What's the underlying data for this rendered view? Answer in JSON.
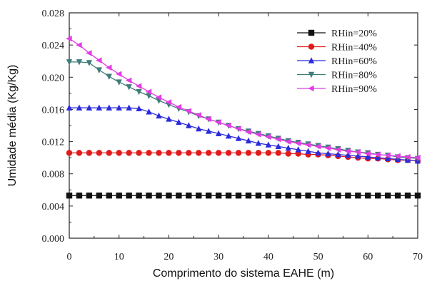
{
  "chart_data": {
    "type": "line",
    "xlabel": "Comprimento do sistema EAHE (m)",
    "ylabel": "Umidade média (Kg/Kg)",
    "xlim": [
      0,
      70
    ],
    "ylim": [
      0,
      0.028
    ],
    "x_ticks": [
      "0",
      "10",
      "20",
      "30",
      "40",
      "50",
      "60",
      "70"
    ],
    "y_ticks": [
      "0.000",
      "0.004",
      "0.008",
      "0.012",
      "0.016",
      "0.020",
      "0.024",
      "0.028"
    ],
    "grid": false,
    "legend_position": "top-right",
    "x": [
      0,
      2,
      4,
      6,
      8,
      10,
      12,
      14,
      16,
      18,
      20,
      22,
      24,
      26,
      28,
      30,
      32,
      34,
      36,
      38,
      40,
      42,
      44,
      46,
      48,
      50,
      52,
      54,
      56,
      58,
      60,
      62,
      64,
      66,
      68,
      70
    ],
    "series": [
      {
        "name": "RHin=20%",
        "color": "#111111",
        "marker": "square",
        "values": [
          0.0053,
          0.0053,
          0.0053,
          0.0053,
          0.0053,
          0.0053,
          0.0053,
          0.0053,
          0.0053,
          0.0053,
          0.0053,
          0.0053,
          0.0053,
          0.0053,
          0.0053,
          0.0053,
          0.0053,
          0.0053,
          0.0053,
          0.0053,
          0.0053,
          0.0053,
          0.0053,
          0.0053,
          0.0053,
          0.0053,
          0.0053,
          0.0053,
          0.0053,
          0.0053,
          0.0053,
          0.0053,
          0.0053,
          0.0053,
          0.0053,
          0.0053
        ]
      },
      {
        "name": "RHin=40%",
        "color": "#e01b1b",
        "marker": "circle",
        "values": [
          0.0106,
          0.0106,
          0.0106,
          0.0106,
          0.0106,
          0.0106,
          0.0106,
          0.0106,
          0.0106,
          0.0106,
          0.0106,
          0.0106,
          0.0106,
          0.0106,
          0.0106,
          0.0106,
          0.0106,
          0.0106,
          0.0106,
          0.0106,
          0.0106,
          0.0106,
          0.0105,
          0.0105,
          0.0104,
          0.0104,
          0.0103,
          0.0102,
          0.0101,
          0.01,
          0.0099,
          0.0099,
          0.0098,
          0.0097,
          0.0097,
          0.0096
        ]
      },
      {
        "name": "RHin=60%",
        "color": "#2b2bdc",
        "marker": "triangle-up",
        "values": [
          0.0162,
          0.0162,
          0.0162,
          0.0162,
          0.0162,
          0.0162,
          0.0162,
          0.0161,
          0.0157,
          0.0152,
          0.0148,
          0.0144,
          0.014,
          0.0136,
          0.0133,
          0.013,
          0.0127,
          0.0124,
          0.0121,
          0.0118,
          0.0116,
          0.0114,
          0.0112,
          0.011,
          0.0108,
          0.0106,
          0.0105,
          0.0104,
          0.0103,
          0.0102,
          0.0101,
          0.01,
          0.0099,
          0.0098,
          0.0097,
          0.0096
        ]
      },
      {
        "name": "RHin=80%",
        "color": "#3f7d78",
        "marker": "triangle-down",
        "values": [
          0.0219,
          0.0219,
          0.0218,
          0.0209,
          0.0201,
          0.0194,
          0.0188,
          0.0182,
          0.0177,
          0.0171,
          0.0166,
          0.0161,
          0.0157,
          0.0152,
          0.0148,
          0.0144,
          0.014,
          0.0136,
          0.0133,
          0.013,
          0.0127,
          0.0124,
          0.0121,
          0.0119,
          0.0117,
          0.0115,
          0.0113,
          0.0111,
          0.0109,
          0.0107,
          0.0106,
          0.0104,
          0.0103,
          0.0101,
          0.01,
          0.0099
        ]
      },
      {
        "name": "RHin=90%",
        "color": "#e43ce6",
        "marker": "triangle-left",
        "values": [
          0.0248,
          0.024,
          0.023,
          0.0221,
          0.0212,
          0.0204,
          0.0196,
          0.0189,
          0.0182,
          0.0175,
          0.0169,
          0.0163,
          0.0158,
          0.0153,
          0.0148,
          0.0144,
          0.014,
          0.0136,
          0.0132,
          0.0129,
          0.0126,
          0.0123,
          0.012,
          0.0118,
          0.0116,
          0.0114,
          0.0112,
          0.011,
          0.0108,
          0.0107,
          0.0105,
          0.0104,
          0.0103,
          0.0102,
          0.0101,
          0.01
        ]
      }
    ]
  }
}
